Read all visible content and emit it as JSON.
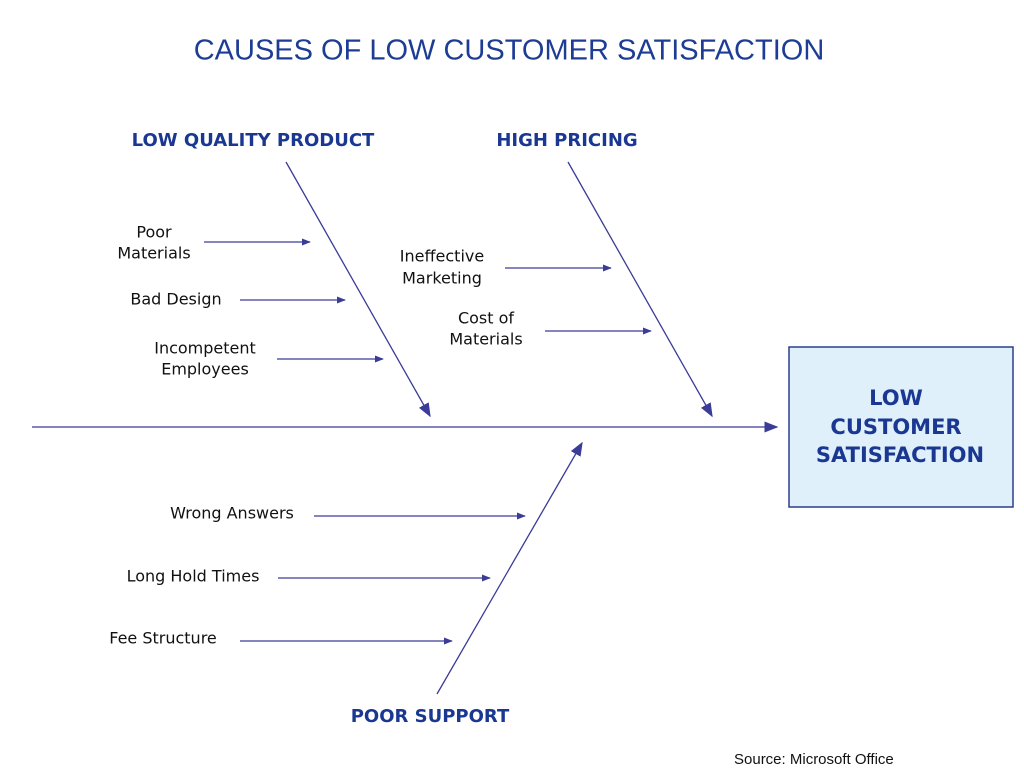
{
  "title": "CAUSES OF LOW CUSTOMER SATISFACTION",
  "effect": {
    "lines": [
      "LOW",
      "CUSTOMER",
      "SATISFACTION"
    ]
  },
  "categories": [
    {
      "label": "LOW QUALITY PRODUCT",
      "causes": [
        {
          "lines": [
            "Poor",
            "Materials"
          ]
        },
        {
          "lines": [
            "Bad Design"
          ]
        },
        {
          "lines": [
            "Incompetent",
            "Employees"
          ]
        }
      ]
    },
    {
      "label": "HIGH PRICING",
      "causes": [
        {
          "lines": [
            "Ineffective",
            "Marketing"
          ]
        },
        {
          "lines": [
            "Cost of",
            "Materials"
          ]
        }
      ]
    },
    {
      "label": "POOR SUPPORT",
      "causes": [
        {
          "lines": [
            "Wrong Answers"
          ]
        },
        {
          "lines": [
            "Long Hold Times"
          ]
        },
        {
          "lines": [
            "Fee Structure"
          ]
        }
      ]
    }
  ],
  "source": "Source: Microsoft Office"
}
